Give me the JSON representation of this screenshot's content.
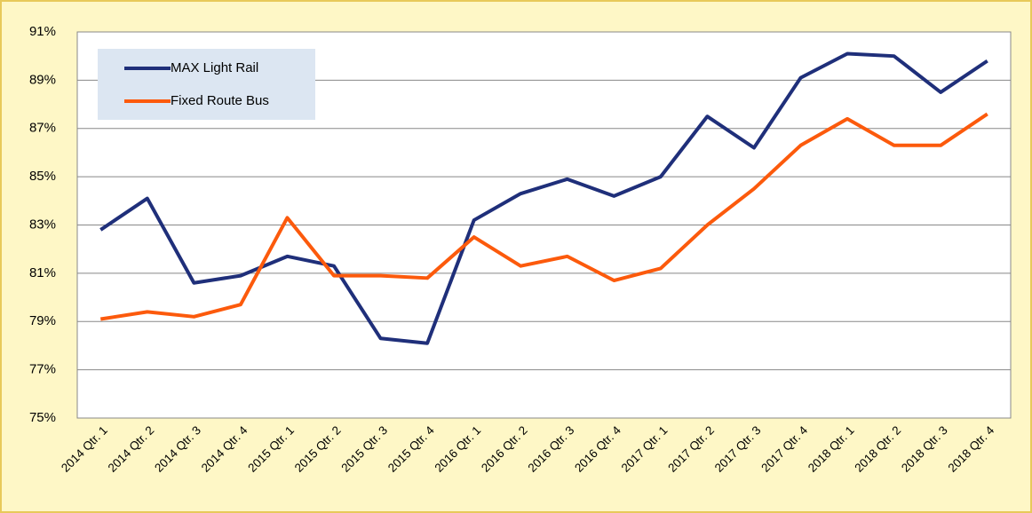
{
  "chart_data": {
    "type": "line",
    "categories": [
      "2014 Qtr. 1",
      "2014 Qtr. 2",
      "2014 Qtr. 3",
      "2014 Qtr. 4",
      "2015 Qtr. 1",
      "2015 Qtr. 2",
      "2015 Qtr. 3",
      "2015 Qtr. 4",
      "2016 Qtr. 1",
      "2016 Qtr. 2",
      "2016 Qtr. 3",
      "2016 Qtr. 4",
      "2017 Qtr. 1",
      "2017 Qtr. 2",
      "2017 Qtr. 3",
      "2017 Qtr. 4",
      "2018 Qtr. 1",
      "2018 Qtr. 2",
      "2018 Qtr. 3",
      "2018 Qtr. 4"
    ],
    "series": [
      {
        "name": "MAX Light Rail",
        "color": "#1f2f7a",
        "values": [
          82.8,
          84.1,
          80.6,
          80.9,
          81.7,
          81.3,
          78.3,
          78.1,
          83.2,
          84.3,
          84.9,
          84.2,
          85.0,
          87.5,
          86.2,
          89.1,
          90.1,
          90.0,
          88.5,
          89.8
        ]
      },
      {
        "name": "Fixed Route Bus",
        "color": "#fc5a0c",
        "values": [
          79.1,
          79.4,
          79.2,
          79.7,
          83.3,
          80.9,
          80.9,
          80.8,
          82.5,
          81.3,
          81.7,
          80.7,
          81.2,
          83.0,
          84.5,
          86.3,
          87.4,
          86.3,
          86.3,
          87.6
        ]
      }
    ],
    "ylim": [
      75,
      91
    ],
    "yticks": [
      {
        "value": 75,
        "label": "75%"
      },
      {
        "value": 77,
        "label": "77%"
      },
      {
        "value": 79,
        "label": "79%"
      },
      {
        "value": 81,
        "label": "81%"
      },
      {
        "value": 83,
        "label": "83%"
      },
      {
        "value": 85,
        "label": "85%"
      },
      {
        "value": 87,
        "label": "87%"
      },
      {
        "value": 89,
        "label": "89%"
      },
      {
        "value": 91,
        "label": "91%"
      }
    ],
    "grid": true,
    "legend": "top-left"
  }
}
